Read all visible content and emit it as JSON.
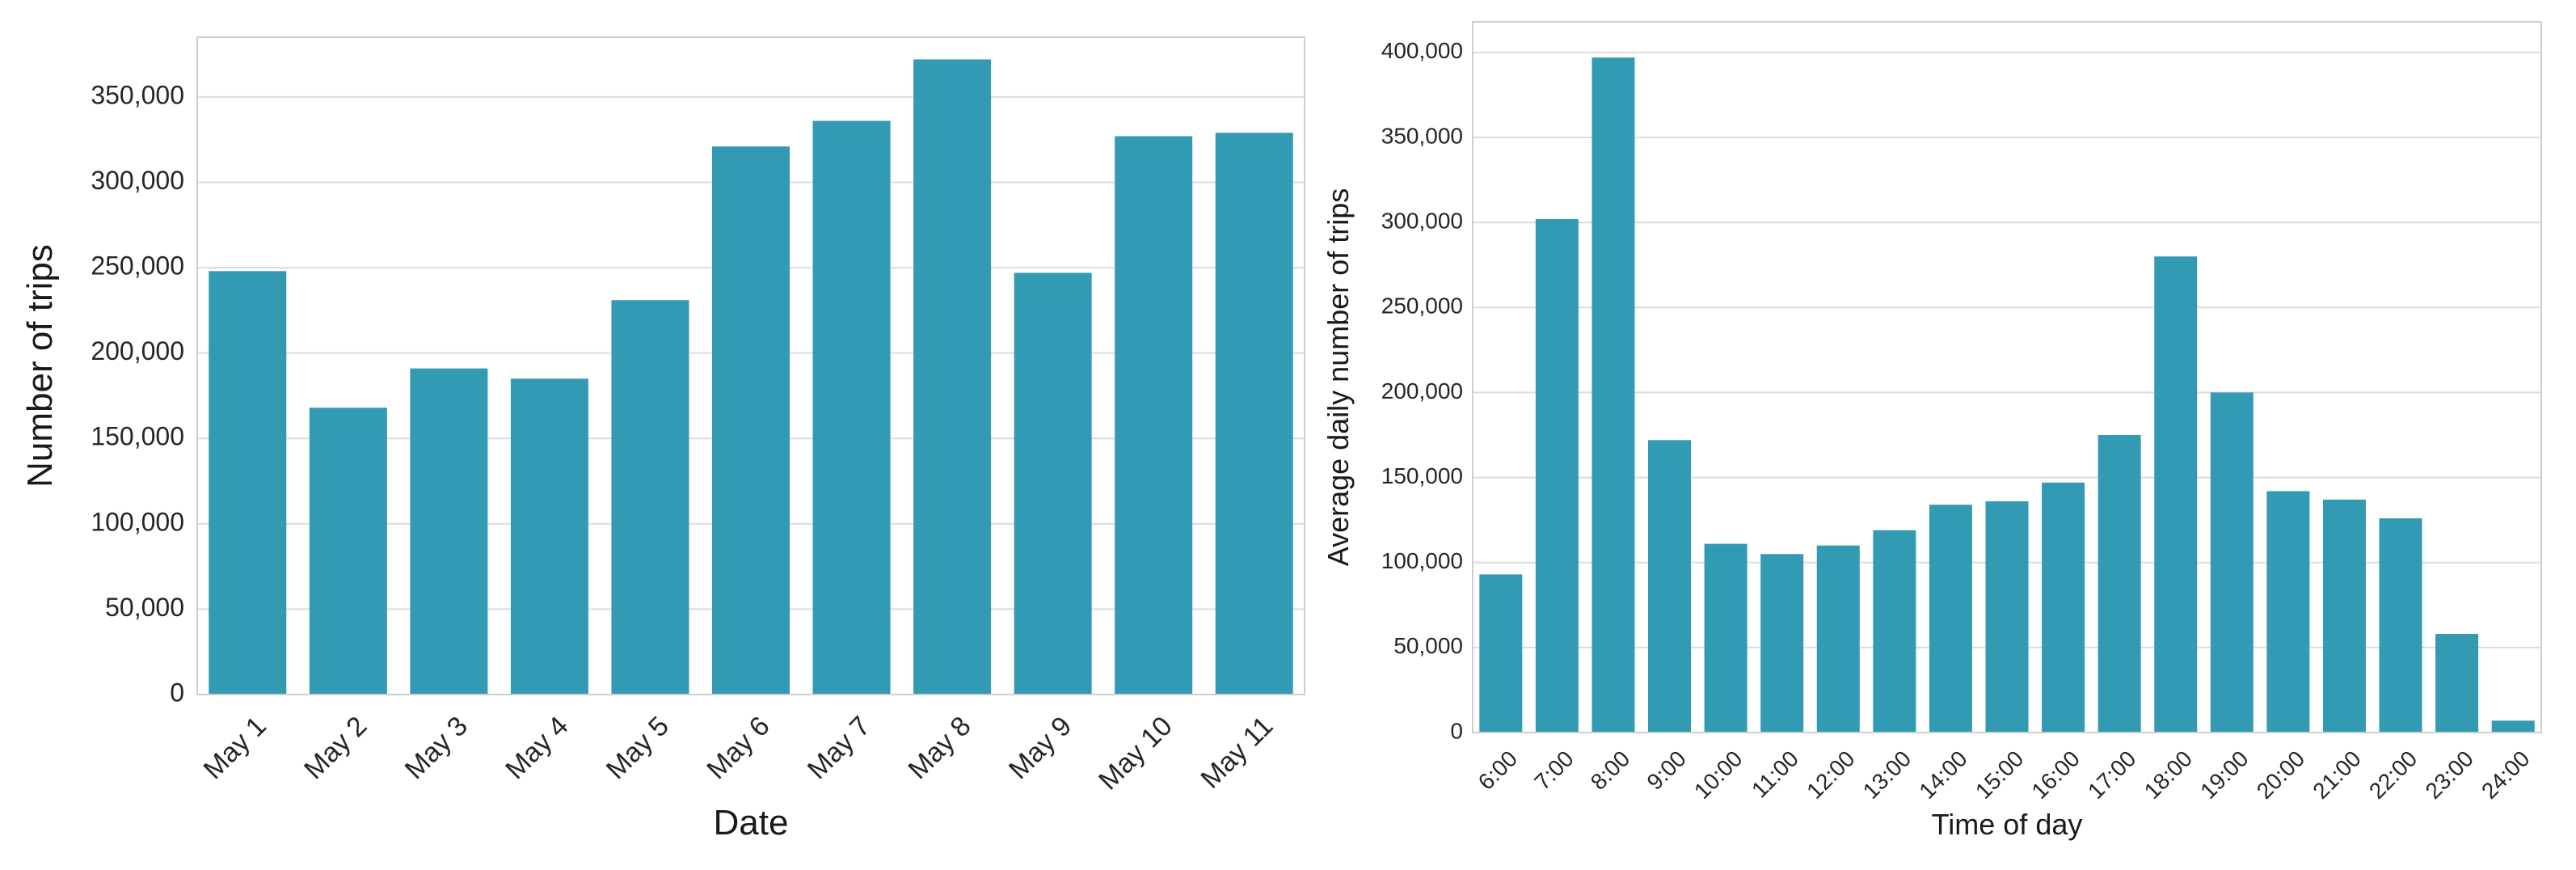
{
  "chart_data": [
    {
      "type": "bar",
      "xlabel": "Date",
      "ylabel": "Number of trips",
      "categories": [
        "May 1",
        "May 2",
        "May 3",
        "May 4",
        "May 5",
        "May 6",
        "May 7",
        "May 8",
        "May 9",
        "May 10",
        "May 11"
      ],
      "values": [
        248000,
        168000,
        191000,
        185000,
        231000,
        321000,
        336000,
        372000,
        247000,
        327000,
        329000
      ],
      "ylim": [
        0,
        385000
      ],
      "yticks": [
        0,
        50000,
        100000,
        150000,
        200000,
        250000,
        300000,
        350000
      ],
      "ytick_labels": [
        "0",
        "50,000",
        "100,000",
        "150,000",
        "200,000",
        "250,000",
        "300,000",
        "350,000"
      ],
      "bar_color": "#339ab4",
      "grid": true
    },
    {
      "type": "bar",
      "xlabel": "Time of day",
      "ylabel": "Average daily number of trips",
      "categories": [
        "6:00",
        "7:00",
        "8:00",
        "9:00",
        "10:00",
        "11:00",
        "12:00",
        "13:00",
        "14:00",
        "15:00",
        "16:00",
        "17:00",
        "18:00",
        "19:00",
        "20:00",
        "21:00",
        "22:00",
        "23:00",
        "24:00"
      ],
      "values": [
        93000,
        302000,
        397000,
        172000,
        111000,
        105000,
        110000,
        119000,
        134000,
        136000,
        147000,
        175000,
        280000,
        200000,
        142000,
        137000,
        126000,
        58000,
        7000
      ],
      "ylim": [
        0,
        418000
      ],
      "yticks": [
        0,
        50000,
        100000,
        150000,
        200000,
        250000,
        300000,
        350000,
        400000
      ],
      "ytick_labels": [
        "0",
        "50,000",
        "100,000",
        "150,000",
        "200,000",
        "250,000",
        "300,000",
        "350,000",
        "400,000"
      ],
      "bar_color": "#339ab4",
      "grid": true
    }
  ]
}
